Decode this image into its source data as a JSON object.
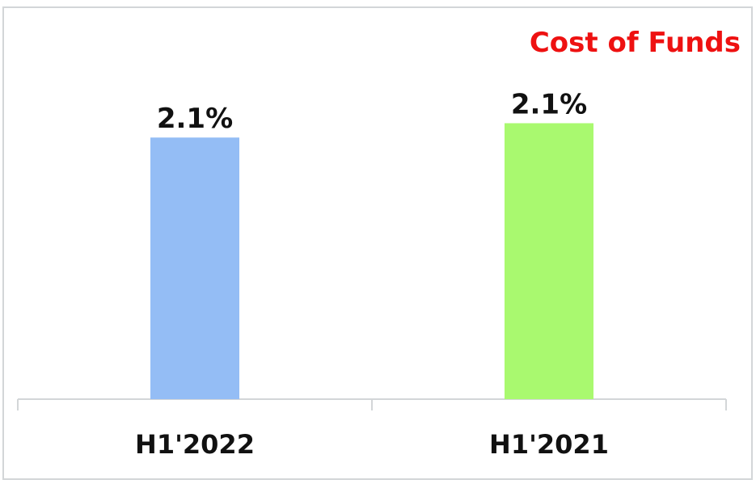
{
  "chart_data": {
    "type": "bar",
    "title": "Cost of Funds",
    "categories": [
      "H1'2022",
      "H1'2021"
    ],
    "values": [
      2.06,
      2.14
    ],
    "value_labels": [
      "2.1%",
      "2.1%"
    ],
    "colors": [
      "#94bdf5",
      "#a9f96f"
    ],
    "title_color": "#ee1111",
    "ylim": [
      0.6,
      2.3
    ]
  }
}
